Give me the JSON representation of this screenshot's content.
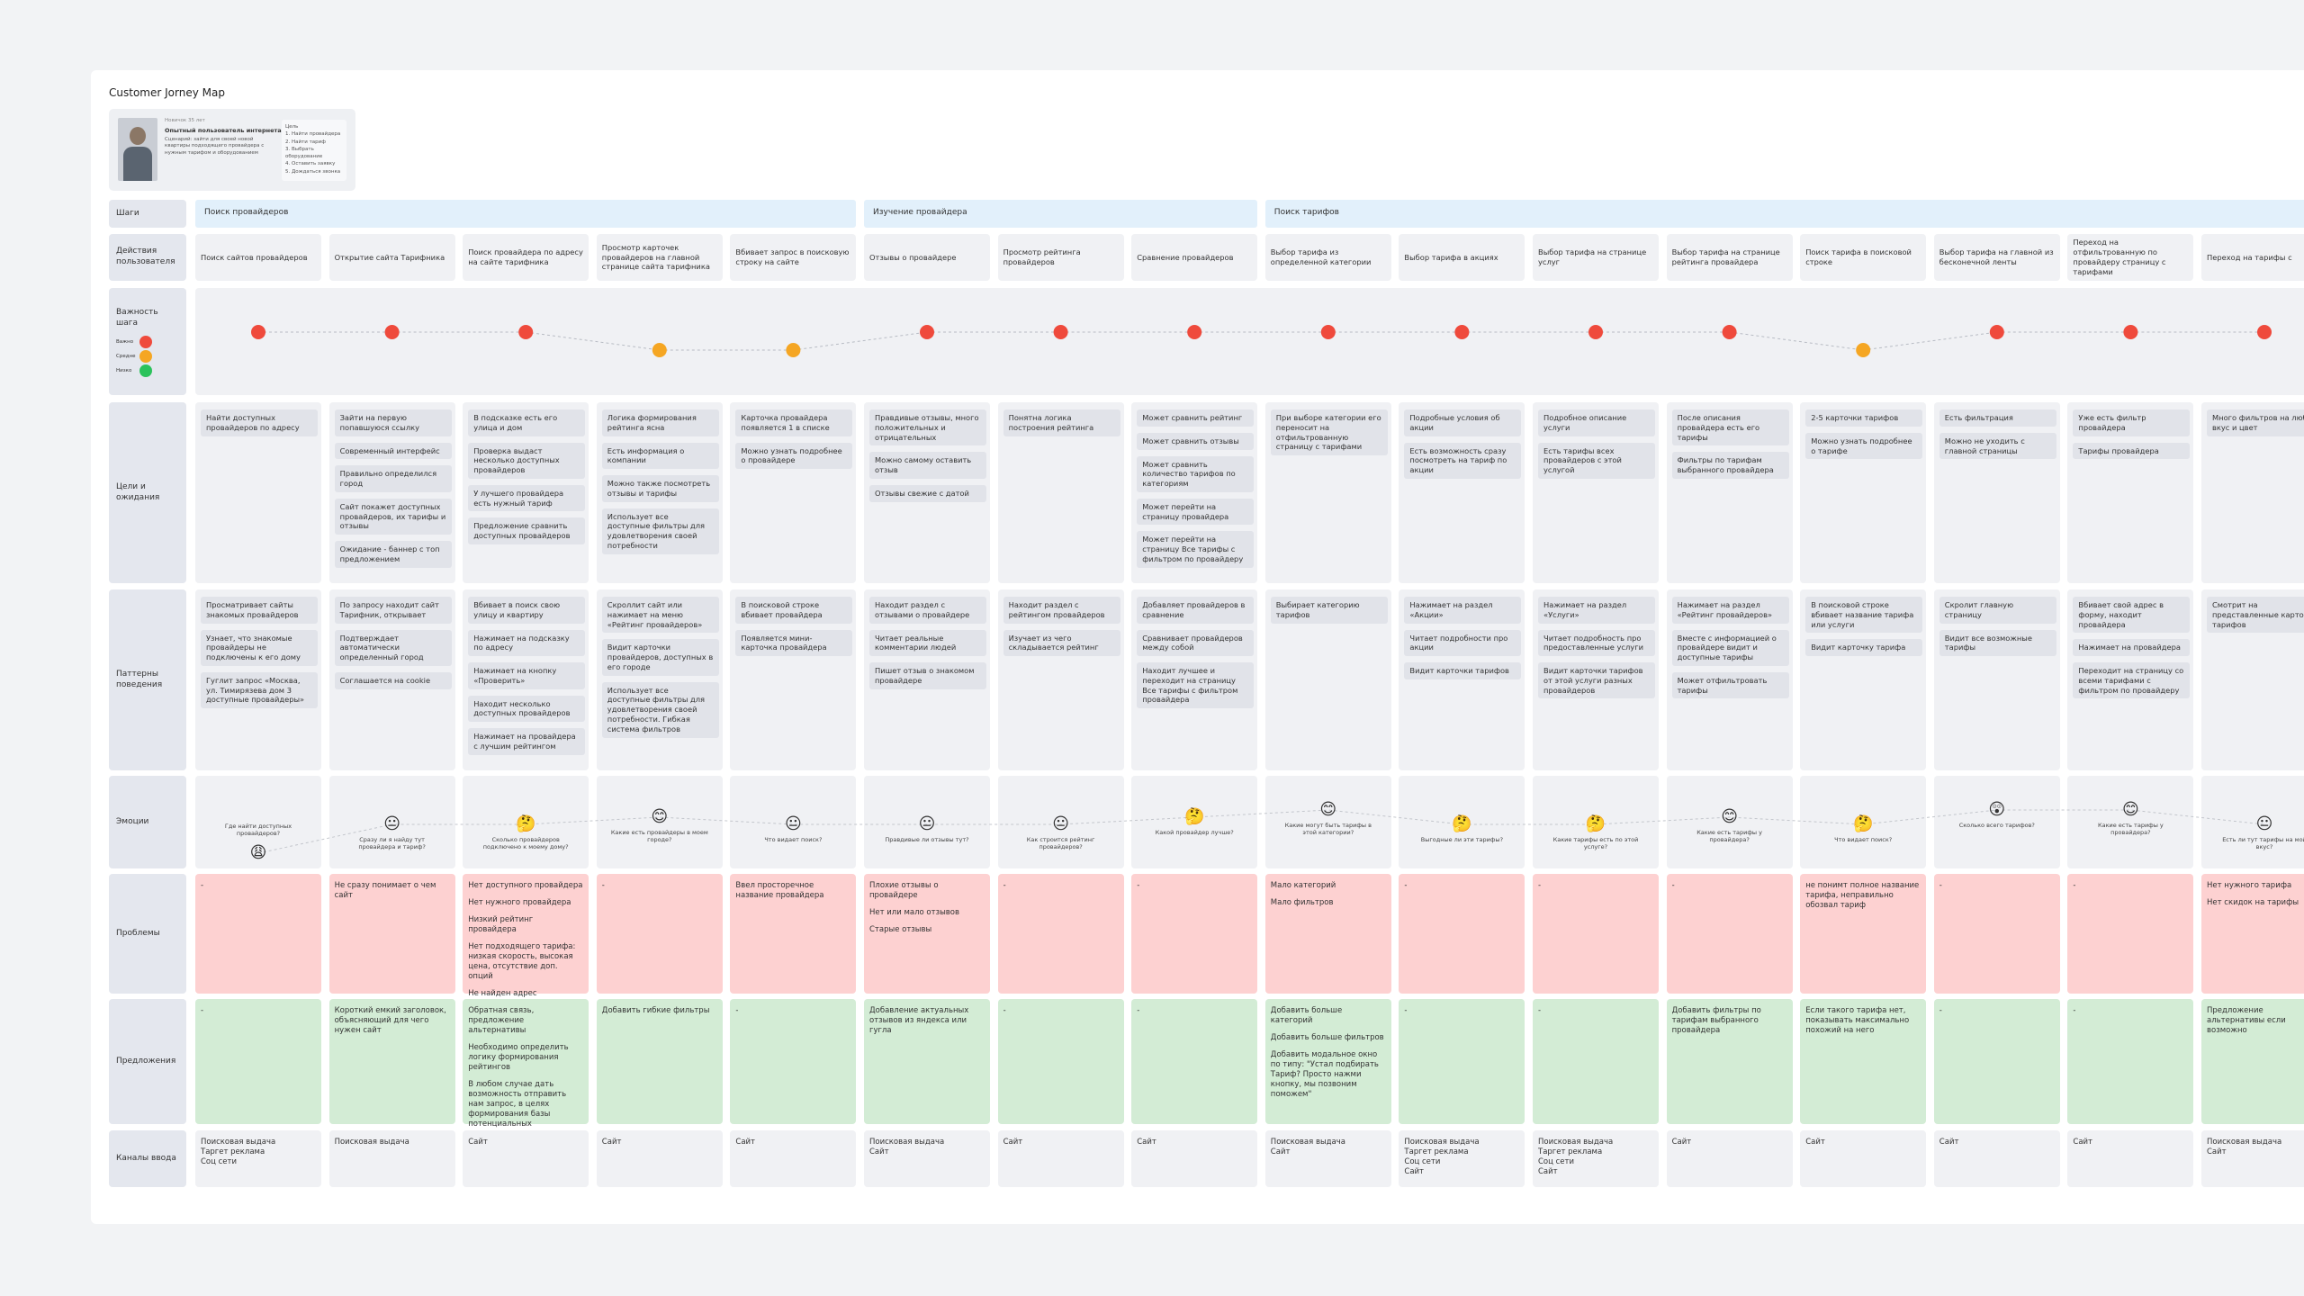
{
  "title": "Customer Jorney Map",
  "persona": {
    "tag": "Новичок 35 лет",
    "name": "Опытный пользователь интернета",
    "description": "Сценарий: зайти для своей новой квартиры подходящего провайдера с нужным тарифом и оборудованием",
    "goals_title": "Цель",
    "goals": [
      "1. Найти провайдера",
      "2. Найти тариф",
      "3. Выбрать оборудование",
      "4. Оставить заявку",
      "5. Дождаться звонка"
    ]
  },
  "row_labels": {
    "steps": "Шаги",
    "actions": "Действия пользователя",
    "importance": "Важность шага",
    "goals": "Цели и ожидания",
    "patterns": "Паттерны поведения",
    "emotions": "Эмоции",
    "problems": "Проблемы",
    "suggestions": "Предложения",
    "channels": "Каналы ввода"
  },
  "importance_legend": [
    {
      "label": "Важно",
      "color": "#ef4a3c"
    },
    {
      "label": "Средне",
      "color": "#f5a623"
    },
    {
      "label": "Низко",
      "color": "#2bc25b"
    }
  ],
  "stages": [
    {
      "name": "Поиск провайдеров",
      "columns": [
        {
          "action": "Поиск сайтов провайдеров",
          "importance_color": "#ef4a3c",
          "goals": [
            "Найти доступных провайдеров по адресу"
          ],
          "patterns": [
            "Просматривает сайты знакомых провайдеров",
            "Узнает, что знакомые провайдеры не подключены к его дому",
            "Гуглит запрос «Москва, ул. Тимирязева дом 3 доступные провайдеры»"
          ],
          "emotion": {
            "emoji": "😩",
            "caption": "Где найти доступных провайдеров?",
            "level": 0
          },
          "problems": [
            "-"
          ],
          "suggestions": [
            "-"
          ],
          "channels": [
            "Поисковая выдача",
            "Таргет реклама",
            "Соц сети"
          ]
        },
        {
          "action": "Открытие сайта Тарифника",
          "importance_color": "#ef4a3c",
          "goals": [
            "Зайти на первую попавшуюся ссылку",
            "Современный интерфейс",
            "Правильно определился город",
            "Сайт покажет доступных провайдеров, их тарифы и отзывы",
            "Ожидание - баннер с топ предложением"
          ],
          "patterns": [
            "По запросу находит сайт Тарифник, открывает",
            "Подтверждает автоматически определенный город",
            "Соглашается на cookie"
          ],
          "emotion": {
            "emoji": "😐",
            "caption": "Сразу ли я найду тут провайдера и тариф?",
            "level": 2
          },
          "problems": [
            "Не сразу понимает о чем сайт"
          ],
          "suggestions": [
            "Короткий емкий заголовок, объясняющий для чего нужен сайт"
          ],
          "channels": [
            "Поисковая выдача"
          ]
        },
        {
          "action": "Поиск провайдера по адресу на сайте тарифника",
          "importance_color": "#ef4a3c",
          "goals": [
            "В подсказке есть его улица и дом",
            "Проверка выдаст несколько доступных провайдеров",
            "У лучшего провайдера есть нужный тариф",
            "Предложение сравнить доступных провайдеров"
          ],
          "patterns": [
            "Вбивает в поиск свою улицу и квартиру",
            "Нажимает на подсказку по адресу",
            "Нажимает на кнопку «Проверить»",
            "Находит несколько доступных провайдеров",
            "Нажимает на провайдера с лучшим рейтингом"
          ],
          "emotion": {
            "emoji": "🤔",
            "caption": "Сколько провайдеров подключено к моему дому?",
            "level": 2
          },
          "problems": [
            "Нет доступного провайдера",
            "Нет нужного провайдера",
            "Низкий рейтинг провайдера",
            "Нет подходящего тарифа: низкая скорость, высокая цена, отсутствие доп. опций",
            "Не найден адрес"
          ],
          "suggestions": [
            "Обратная связь, предложение альтернативы",
            "Необходимо определить логику формирования рейтингов",
            "В любом случае дать возможность отправить нам запрос, в целях формирования базы потенциальных"
          ],
          "channels": [
            "Сайт"
          ]
        },
        {
          "action": "Просмотр карточек провайдеров на главной странице сайта тарифника",
          "importance_color": "#f5a623",
          "goals": [
            "Логика формирования рейтинга ясна",
            "Есть информация о компании",
            "Можно также посмотреть отзывы и тарифы",
            "Использует все доступные фильтры для удовлетворения своей потребности"
          ],
          "patterns": [
            "Скроллит сайт или нажимает на меню «Рейтинг провайдеров»",
            "Видит карточки провайдеров, доступных в его городе",
            "Использует все доступные фильтры для удовлетворения своей потребности. Гибкая система фильтров"
          ],
          "emotion": {
            "emoji": "😊",
            "caption": "Какие есть провайдеры в моем городе?",
            "level": 2.5
          },
          "problems": [
            "-"
          ],
          "suggestions": [
            "Добавить гибкие фильтры"
          ],
          "channels": [
            "Сайт"
          ]
        },
        {
          "action": "Вбивает запрос в поисковую строку на сайте",
          "importance_color": "#f5a623",
          "goals": [
            "Карточка провайдера появляется 1 в списке",
            "Можно узнать подробнее о провайдере"
          ],
          "patterns": [
            "В поисковой строке вбивает провайдера",
            "Появляется мини-карточка провайдера"
          ],
          "emotion": {
            "emoji": "😐",
            "caption": "Что видает поиск?",
            "level": 2
          },
          "problems": [
            "Ввел просторечное название провайдера"
          ],
          "suggestions": [
            "-"
          ],
          "channels": [
            "Сайт"
          ]
        }
      ]
    },
    {
      "name": "Изучение провайдера",
      "columns": [
        {
          "action": "Отзывы о провайдере",
          "importance_color": "#ef4a3c",
          "goals": [
            "Правдивые отзывы, много положительных и отрицательных",
            "Можно самому оставить отзыв",
            "Отзывы свежие с датой"
          ],
          "patterns": [
            "Находит раздел с отзывами о провайдере",
            "Читает реальные комментарии людей",
            "Пишет отзыв о знакомом провайдере"
          ],
          "emotion": {
            "emoji": "😐",
            "caption": "Правдивые ли отзывы тут?",
            "level": 2
          },
          "problems": [
            "Плохие отзывы о провайдере",
            "Нет или мало отзывов",
            "Старые отзывы"
          ],
          "suggestions": [
            "Добавление актуальных отзывов из яндекса или гугла"
          ],
          "channels": [
            "Поисковая выдача",
            "Сайт"
          ]
        },
        {
          "action": "Просмотр рейтинга провайдеров",
          "importance_color": "#ef4a3c",
          "goals": [
            "Понятна логика построения рейтинга"
          ],
          "patterns": [
            "Находит раздел с рейтингом провайдеров",
            "Изучает из чего складывается рейтинг"
          ],
          "emotion": {
            "emoji": "😐",
            "caption": "Как строится рейтинг провайдеров?",
            "level": 2
          },
          "problems": [
            "-"
          ],
          "suggestions": [
            "-"
          ],
          "channels": [
            "Сайт"
          ]
        },
        {
          "action": "Сравнение провайдеров",
          "importance_color": "#ef4a3c",
          "goals": [
            "Может сравнить рейтинг",
            "Может сравнить отзывы",
            "Может сравнить количество тарифов по категориям",
            "Может перейти на страницу провайдера",
            "Может перейти на страницу Все тарифы с фильтром по провайдеру"
          ],
          "patterns": [
            "Добавляет провайдеров в сравнение",
            "Сравнивает провайдеров между собой",
            "Находит лучшее и переходит на страницу Все тарифы с фильтром провайдера"
          ],
          "emotion": {
            "emoji": "🤔",
            "caption": "Какой провайдер лучше?",
            "level": 2.5
          },
          "problems": [
            "-"
          ],
          "suggestions": [
            "-"
          ],
          "channels": [
            "Сайт"
          ]
        }
      ]
    },
    {
      "name": "Поиск тарифов",
      "columns": [
        {
          "action": "Выбор тарифа из определенной категории",
          "importance_color": "#ef4a3c",
          "goals": [
            "При выборе категории его переносит на отфильтрованную страницу с тарифами"
          ],
          "patterns": [
            "Выбирает категорию тарифов"
          ],
          "emotion": {
            "emoji": "😊",
            "caption": "Какие могут быть тарифы в этой категории?",
            "level": 3
          },
          "problems": [
            "Мало категорий",
            "Мало фильтров"
          ],
          "suggestions": [
            "Добавить больше категорий",
            "Добавить больше фильтров",
            "Добавить модальное окно по типу: \"Устал подбирать Тариф? Просто нажми кнопку, мы позвоним поможем\""
          ],
          "channels": [
            "Поисковая выдача",
            "Сайт"
          ]
        },
        {
          "action": "Выбор тарифа в акциях",
          "importance_color": "#ef4a3c",
          "goals": [
            "Подробные условия об акции",
            "Есть возможность сразу посмотреть на тариф по акции"
          ],
          "patterns": [
            "Нажимает на раздел «Акции»",
            "Читает подробности про акции",
            "Видит карточки тарифов"
          ],
          "emotion": {
            "emoji": "🤔",
            "caption": "Выгодные ли эти тарифы?",
            "level": 2
          },
          "problems": [
            "-"
          ],
          "suggestions": [
            "-"
          ],
          "channels": [
            "Поисковая выдача",
            "Таргет реклама",
            "Соц сети",
            "Сайт"
          ]
        },
        {
          "action": "Выбор тарифа на странице услуг",
          "importance_color": "#ef4a3c",
          "goals": [
            "Подробное описание услуги",
            "Есть тарифы всех провайдеров с этой услугой"
          ],
          "patterns": [
            "Нажимает на раздел «Услуги»",
            "Читает подробность про предоставленные услуги",
            "Видит карточки тарифов от этой услуги разных провайдеров"
          ],
          "emotion": {
            "emoji": "🤔",
            "caption": "Какие тарифы есть по этой услуге?",
            "level": 2
          },
          "problems": [
            "-"
          ],
          "suggestions": [
            "-"
          ],
          "channels": [
            "Поисковая выдача",
            "Таргет реклама",
            "Соц сети",
            "Сайт"
          ]
        },
        {
          "action": "Выбор тарифа на странице рейтинга провайдера",
          "importance_color": "#ef4a3c",
          "goals": [
            "После описания провайдера есть его тарифы",
            "Фильтры по тарифам выбранного провайдера"
          ],
          "patterns": [
            "Нажимает на раздел «Рейтинг провайдеров»",
            "Вместе с информацией о провайдере видит и доступные тарифы",
            "Может отфильтровать тарифы"
          ],
          "emotion": {
            "emoji": "😊",
            "caption": "Какие есть тарифы у провайдера?",
            "level": 2.5
          },
          "problems": [
            "-"
          ],
          "suggestions": [
            "Добавить фильтры по тарифам выбранного провайдера"
          ],
          "channels": [
            "Сайт"
          ]
        },
        {
          "action": "Поиск тарифа в поисковой строке",
          "importance_color": "#f5a623",
          "goals": [
            "2-5 карточки тарифов",
            "Можно узнать подробнее о тарифе"
          ],
          "patterns": [
            "В поисковой строке вбивает название тарифа или услуги",
            "Видит карточку тарифа"
          ],
          "emotion": {
            "emoji": "🤔",
            "caption": "Что видает поиск?",
            "level": 2
          },
          "problems": [
            "не понимт полное название тарифа, неправильно обозвал тариф"
          ],
          "suggestions": [
            "Если такого тарифа нет, показывать максимально похожий на него"
          ],
          "channels": [
            "Сайт"
          ]
        },
        {
          "action": "Выбор тарифа на главной из бесконечной ленты",
          "importance_color": "#ef4a3c",
          "goals": [
            "Есть фильтрация",
            "Можно не уходить с главной страницы"
          ],
          "patterns": [
            "Скролит главную страницу",
            "Видит все возможные тарифы"
          ],
          "emotion": {
            "emoji": "😲",
            "caption": "Сколько всего тарифов?",
            "level": 3
          },
          "problems": [
            "-"
          ],
          "suggestions": [
            "-"
          ],
          "channels": [
            "Сайт"
          ]
        },
        {
          "action": "Переход на отфильтрованную по провайдеру страницу с тарифами",
          "importance_color": "#ef4a3c",
          "goals": [
            "Уже есть фильтр провайдера",
            "Тарифы провайдера"
          ],
          "patterns": [
            "Вбивает свой адрес в форму, находит провайдера",
            "Нажимает на провайдера",
            "Переходит на страницу со всеми тарифами с фильтром по провайдеру"
          ],
          "emotion": {
            "emoji": "😊",
            "caption": "Какие есть тарифы у провайдера?",
            "level": 3
          },
          "problems": [
            "-"
          ],
          "suggestions": [
            "-"
          ],
          "channels": [
            "Сайт"
          ]
        },
        {
          "action": "Переход на тарифы с",
          "importance_color": "#ef4a3c",
          "goals": [
            "Много фильтров на любой вкус и цвет"
          ],
          "patterns": [
            "Смотрит на представленные карточки тарифов"
          ],
          "emotion": {
            "emoji": "😐",
            "caption": "Есть ли тут тарифы на мой вкус?",
            "level": 2
          },
          "problems": [
            "Нет нужного тарифа",
            "Нет скидок на тарифы"
          ],
          "suggestions": [
            "Предложение альтернативы если возможно"
          ],
          "channels": [
            "Поисковая выдача",
            "Сайт"
          ]
        }
      ]
    }
  ]
}
